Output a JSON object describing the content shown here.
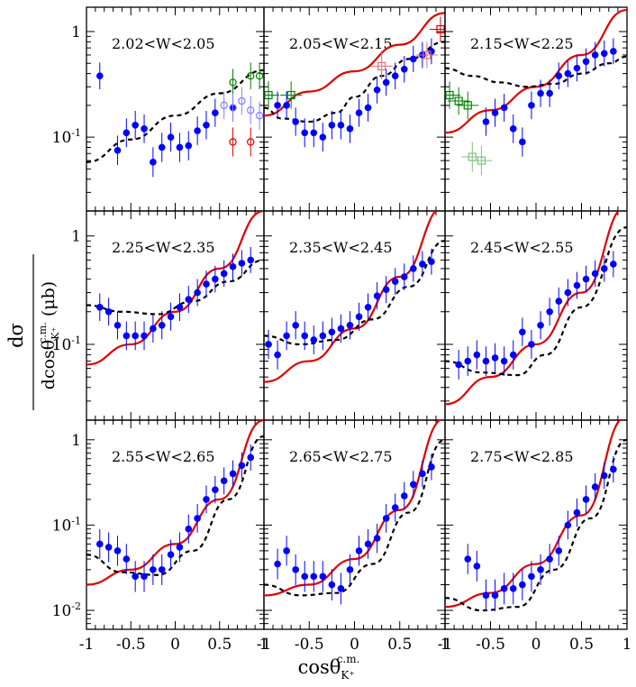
{
  "figure": {
    "ylabel_num": "dσ",
    "ylabel_den_main": "dcosθ",
    "ylabel_den_sup": "c.m.",
    "ylabel_den_sub": "K⁺",
    "ylabel_unit": " (μb)",
    "xlabel_main": "cosθ",
    "xlabel_sup": "c.m.",
    "xlabel_sub": "K⁺"
  },
  "axes": {
    "xlim": [
      -1.0,
      1.0
    ],
    "x_ticks": [
      "-1",
      "-0.5",
      "0",
      "0.5",
      "1"
    ],
    "row_ylim": [
      [
        0.02,
        1.7
      ],
      [
        0.02,
        1.7
      ],
      [
        0.006,
        1.7
      ]
    ],
    "y_tick_labels_row0": [
      "1",
      "10^-1"
    ],
    "y_tick_labels_row1": [
      "1",
      "10^-1"
    ],
    "y_tick_labels_row2": [
      "1",
      "10^-1",
      "10^-2"
    ],
    "yscale": "log"
  },
  "colors": {
    "blue_data": "#0000ff",
    "red_model": "#e00000",
    "black_model": "#000000",
    "green_data": "#008000",
    "light_green_data": "#80c080",
    "red_open": "#e00000",
    "light_blue_open": "#8080ff",
    "pink_open": "#ff80a0",
    "magenta_open": "#d000d0",
    "cyan_open": "#00c0c0",
    "salmon_open": "#e07070",
    "brown_open": "#a04040"
  },
  "chart_data": [
    {
      "type": "scatter",
      "title": "2.02<W<2.05",
      "series": [
        {
          "name": "blue filled points",
          "x": [
            -0.85,
            -0.65,
            -0.55,
            -0.45,
            -0.35,
            -0.25,
            -0.15,
            -0.05,
            0.05,
            0.15,
            0.25,
            0.35,
            0.45,
            0.65
          ],
          "y": [
            0.38,
            0.075,
            0.11,
            0.13,
            0.12,
            0.058,
            0.08,
            0.1,
            0.08,
            0.083,
            0.115,
            0.13,
            0.17,
            0.19
          ]
        },
        {
          "name": "green open circles",
          "x": [
            0.65,
            0.85,
            0.95
          ],
          "y": [
            0.33,
            0.38,
            0.38
          ]
        },
        {
          "name": "light blue open circles",
          "x": [
            0.55,
            0.65,
            0.75,
            0.85,
            0.95
          ],
          "y": [
            0.2,
            0.19,
            0.22,
            0.18,
            0.16
          ]
        },
        {
          "name": "red open circles",
          "x": [
            0.65,
            0.85
          ],
          "y": [
            0.09,
            0.09
          ]
        },
        {
          "name": "black dashed model",
          "x": [
            -1,
            -0.5,
            0,
            0.5,
            1
          ],
          "y": [
            0.058,
            0.095,
            0.16,
            0.26,
            0.43
          ]
        }
      ]
    },
    {
      "type": "scatter",
      "title": "2.05<W<2.15",
      "series": [
        {
          "name": "blue filled points",
          "x": [
            -0.85,
            -0.75,
            -0.65,
            -0.55,
            -0.45,
            -0.35,
            -0.25,
            -0.15,
            -0.05,
            0.05,
            0.15,
            0.25,
            0.35,
            0.45,
            0.55,
            0.65,
            0.75,
            0.85
          ],
          "y": [
            0.2,
            0.2,
            0.14,
            0.11,
            0.11,
            0.1,
            0.13,
            0.13,
            0.12,
            0.17,
            0.19,
            0.28,
            0.33,
            0.38,
            0.44,
            0.55,
            0.6,
            0.65
          ]
        },
        {
          "name": "green open squares",
          "x": [
            -0.95,
            -0.7
          ],
          "y": [
            0.25,
            0.25
          ]
        },
        {
          "name": "salmon open squares",
          "x": [
            0.3,
            0.8
          ],
          "y": [
            0.47,
            0.6
          ]
        },
        {
          "name": "red open squares",
          "x": [
            0.95
          ],
          "y": [
            1.05
          ]
        },
        {
          "name": "red solid model",
          "x": [
            -1,
            -0.5,
            0,
            0.5,
            1
          ],
          "y": [
            0.16,
            0.27,
            0.42,
            0.75,
            1.5
          ]
        },
        {
          "name": "black dashed model",
          "x": [
            -1,
            -0.8,
            -0.5,
            -0.2,
            0,
            0.3,
            0.6,
            1
          ],
          "y": [
            0.19,
            0.15,
            0.14,
            0.17,
            0.24,
            0.38,
            0.55,
            0.8
          ]
        }
      ]
    },
    {
      "type": "scatter",
      "title": "2.15<W<2.25",
      "series": [
        {
          "name": "blue filled points",
          "x": [
            -0.55,
            -0.45,
            -0.35,
            -0.25,
            -0.15,
            -0.05,
            0.05,
            0.15,
            0.25,
            0.35,
            0.45,
            0.55,
            0.65,
            0.75,
            0.85
          ],
          "y": [
            0.14,
            0.17,
            0.19,
            0.12,
            0.09,
            0.2,
            0.26,
            0.26,
            0.38,
            0.4,
            0.45,
            0.52,
            0.6,
            0.62,
            0.65
          ]
        },
        {
          "name": "green open squares",
          "x": [
            -0.95,
            -0.85,
            -0.75
          ],
          "y": [
            0.25,
            0.22,
            0.2
          ]
        },
        {
          "name": "light green open squares",
          "x": [
            -0.7,
            -0.6
          ],
          "y": [
            0.065,
            0.06
          ]
        },
        {
          "name": "red solid model",
          "x": [
            -1,
            -0.5,
            0,
            0.5,
            1
          ],
          "y": [
            0.11,
            0.18,
            0.3,
            0.6,
            1.6
          ]
        },
        {
          "name": "black dashed model",
          "x": [
            -1,
            -0.7,
            -0.4,
            -0.1,
            0.2,
            0.5,
            0.8,
            1
          ],
          "y": [
            0.45,
            0.38,
            0.33,
            0.3,
            0.32,
            0.4,
            0.5,
            0.58
          ]
        }
      ]
    },
    {
      "type": "scatter",
      "title": "2.25<W<2.35",
      "series": [
        {
          "name": "blue filled points",
          "x": [
            -0.85,
            -0.75,
            -0.65,
            -0.55,
            -0.45,
            -0.35,
            -0.25,
            -0.15,
            -0.05,
            0.05,
            0.15,
            0.25,
            0.35,
            0.45,
            0.55,
            0.65,
            0.75,
            0.85
          ],
          "y": [
            0.22,
            0.2,
            0.15,
            0.12,
            0.12,
            0.12,
            0.14,
            0.15,
            0.18,
            0.22,
            0.26,
            0.3,
            0.36,
            0.4,
            0.45,
            0.52,
            0.56,
            0.6
          ]
        },
        {
          "name": "red solid model",
          "x": [
            -1,
            -0.5,
            0,
            0.5,
            1
          ],
          "y": [
            0.065,
            0.1,
            0.2,
            0.5,
            1.7
          ]
        },
        {
          "name": "black dashed model",
          "x": [
            -1,
            -0.6,
            -0.2,
            0.2,
            0.6,
            1
          ],
          "y": [
            0.23,
            0.2,
            0.19,
            0.25,
            0.38,
            0.6
          ]
        }
      ]
    },
    {
      "type": "scatter",
      "title": "2.35<W<2.45",
      "series": [
        {
          "name": "blue filled points",
          "x": [
            -0.95,
            -0.85,
            -0.75,
            -0.65,
            -0.55,
            -0.45,
            -0.35,
            -0.25,
            -0.15,
            -0.05,
            0.05,
            0.15,
            0.25,
            0.35,
            0.45,
            0.55,
            0.65,
            0.75,
            0.85
          ],
          "y": [
            0.1,
            0.08,
            0.12,
            0.15,
            0.12,
            0.11,
            0.12,
            0.13,
            0.14,
            0.15,
            0.18,
            0.22,
            0.28,
            0.32,
            0.38,
            0.42,
            0.5,
            0.55,
            0.58
          ]
        },
        {
          "name": "red solid model",
          "x": [
            -1,
            -0.5,
            0,
            0.5,
            1
          ],
          "y": [
            0.045,
            0.07,
            0.14,
            0.42,
            1.9
          ]
        },
        {
          "name": "black dashed model",
          "x": [
            -1,
            -0.6,
            -0.2,
            0.2,
            0.6,
            1
          ],
          "y": [
            0.12,
            0.1,
            0.11,
            0.17,
            0.34,
            0.9
          ]
        }
      ]
    },
    {
      "type": "scatter",
      "title": "2.45<W<2.55",
      "series": [
        {
          "name": "blue filled points",
          "x": [
            -0.85,
            -0.75,
            -0.65,
            -0.55,
            -0.45,
            -0.35,
            -0.25,
            -0.15,
            -0.05,
            0.05,
            0.15,
            0.25,
            0.35,
            0.45,
            0.55,
            0.65,
            0.75,
            0.85
          ],
          "y": [
            0.065,
            0.07,
            0.08,
            0.07,
            0.075,
            0.07,
            0.08,
            0.13,
            0.1,
            0.15,
            0.2,
            0.25,
            0.3,
            0.35,
            0.4,
            0.45,
            0.5,
            0.55
          ]
        },
        {
          "name": "red solid model",
          "x": [
            -1,
            -0.5,
            0,
            0.5,
            1
          ],
          "y": [
            0.028,
            0.05,
            0.1,
            0.3,
            1.9
          ]
        },
        {
          "name": "black dashed model",
          "x": [
            -1,
            -0.6,
            -0.2,
            0.1,
            0.5,
            1
          ],
          "y": [
            0.07,
            0.055,
            0.052,
            0.08,
            0.22,
            1.2
          ]
        }
      ]
    },
    {
      "type": "scatter",
      "title": "2.55<W<2.65",
      "series": [
        {
          "name": "blue filled points",
          "x": [
            -0.85,
            -0.75,
            -0.65,
            -0.55,
            -0.45,
            -0.35,
            -0.25,
            -0.15,
            -0.05,
            0.05,
            0.15,
            0.25,
            0.35,
            0.45,
            0.55,
            0.65,
            0.75,
            0.85
          ],
          "y": [
            0.06,
            0.055,
            0.05,
            0.04,
            0.025,
            0.025,
            0.03,
            0.03,
            0.045,
            0.055,
            0.09,
            0.12,
            0.2,
            0.26,
            0.33,
            0.4,
            0.5,
            0.62
          ]
        },
        {
          "name": "red solid model",
          "x": [
            -1,
            -0.5,
            0,
            0.5,
            1
          ],
          "y": [
            0.02,
            0.03,
            0.06,
            0.2,
            1.7
          ]
        },
        {
          "name": "black dashed model",
          "x": [
            -1,
            -0.6,
            -0.2,
            0.2,
            0.6,
            1
          ],
          "y": [
            0.045,
            0.028,
            0.026,
            0.05,
            0.2,
            1.1
          ]
        }
      ]
    },
    {
      "type": "scatter",
      "title": "2.65<W<2.75",
      "series": [
        {
          "name": "blue filled points",
          "x": [
            -0.85,
            -0.75,
            -0.65,
            -0.55,
            -0.45,
            -0.35,
            -0.25,
            -0.15,
            -0.05,
            0.05,
            0.15,
            0.25,
            0.35,
            0.45,
            0.55,
            0.65,
            0.75,
            0.85
          ],
          "y": [
            0.035,
            0.05,
            0.03,
            0.025,
            0.025,
            0.025,
            0.02,
            0.018,
            0.03,
            0.05,
            0.06,
            0.07,
            0.12,
            0.16,
            0.22,
            0.3,
            0.4,
            0.48
          ]
        },
        {
          "name": "red solid model",
          "x": [
            -1,
            -0.5,
            0,
            0.5,
            1
          ],
          "y": [
            0.015,
            0.02,
            0.04,
            0.15,
            1.8
          ]
        },
        {
          "name": "black dashed model",
          "x": [
            -1,
            -0.6,
            -0.2,
            0.2,
            0.6,
            1
          ],
          "y": [
            0.02,
            0.015,
            0.016,
            0.035,
            0.14,
            1.0
          ]
        }
      ]
    },
    {
      "type": "scatter",
      "title": "2.75<W<2.85",
      "series": [
        {
          "name": "blue filled points",
          "x": [
            -0.75,
            -0.65,
            -0.55,
            -0.45,
            -0.35,
            -0.25,
            -0.15,
            -0.05,
            0.05,
            0.15,
            0.25,
            0.35,
            0.45,
            0.55,
            0.65,
            0.75,
            0.85
          ],
          "y": [
            0.04,
            0.033,
            0.015,
            0.015,
            0.018,
            0.018,
            0.02,
            0.025,
            0.03,
            0.04,
            0.05,
            0.1,
            0.14,
            0.2,
            0.28,
            0.38,
            0.45
          ]
        },
        {
          "name": "red solid model",
          "x": [
            -1,
            -0.5,
            0,
            0.5,
            1
          ],
          "y": [
            0.011,
            0.016,
            0.035,
            0.13,
            1.9
          ]
        },
        {
          "name": "black dashed model",
          "x": [
            -1,
            -0.6,
            -0.2,
            0.2,
            0.6,
            1
          ],
          "y": [
            0.014,
            0.01,
            0.011,
            0.03,
            0.12,
            1.0
          ]
        }
      ]
    }
  ]
}
